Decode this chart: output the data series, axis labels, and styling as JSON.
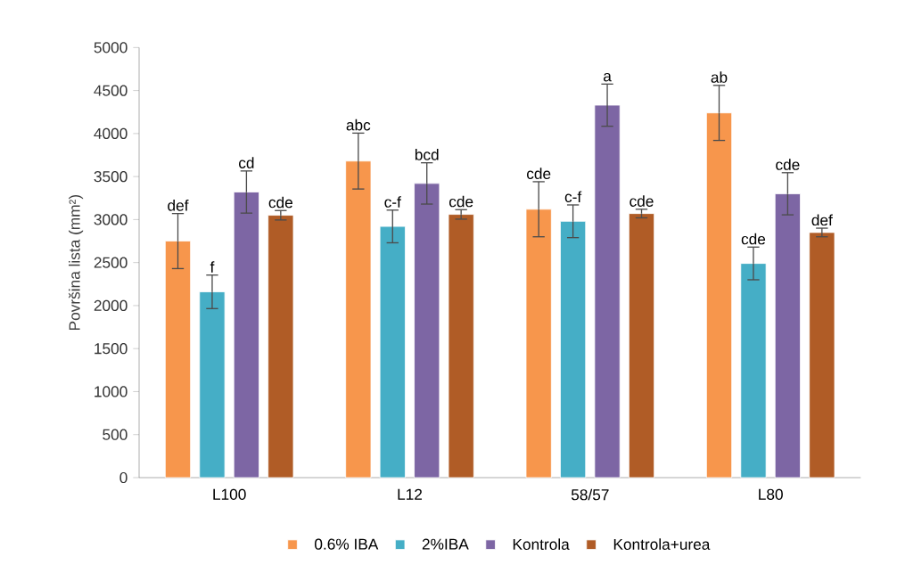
{
  "chart_data": {
    "type": "bar",
    "ylabel": "Površina lista (mm²)",
    "categories": [
      "L100",
      "L12",
      "58/57",
      "L80"
    ],
    "series": [
      {
        "name": "0.6% IBA",
        "color": "#f7964c",
        "values": [
          2750,
          3680,
          3120,
          4240
        ],
        "errors": [
          320,
          325,
          320,
          320
        ]
      },
      {
        "name": "2%IBA",
        "color": "#45aec6",
        "values": [
          2160,
          2920,
          2980,
          2490
        ],
        "errors": [
          195,
          190,
          190,
          190
        ]
      },
      {
        "name": "Kontrola",
        "color": "#7d66a4",
        "values": [
          3320,
          3420,
          4330,
          3300
        ],
        "errors": [
          245,
          240,
          245,
          245
        ]
      },
      {
        "name": "Kontrola+urea",
        "color": "#b05c26",
        "values": [
          3050,
          3060,
          3070,
          2850
        ],
        "errors": [
          55,
          55,
          50,
          50
        ]
      }
    ],
    "ylim": [
      0,
      5000
    ],
    "yticks": [
      0,
      500,
      1000,
      1500,
      2000,
      2500,
      3000,
      3500,
      4000,
      4500,
      5000
    ],
    "legend": "bottom",
    "grid": false,
    "annotations": [
      "def",
      "f",
      "cd",
      "cde",
      "abc",
      "c-f",
      "bcd",
      "cde",
      "cde",
      "c-f",
      "a",
      "cde",
      "ab",
      "cde",
      "cde",
      "def"
    ]
  }
}
